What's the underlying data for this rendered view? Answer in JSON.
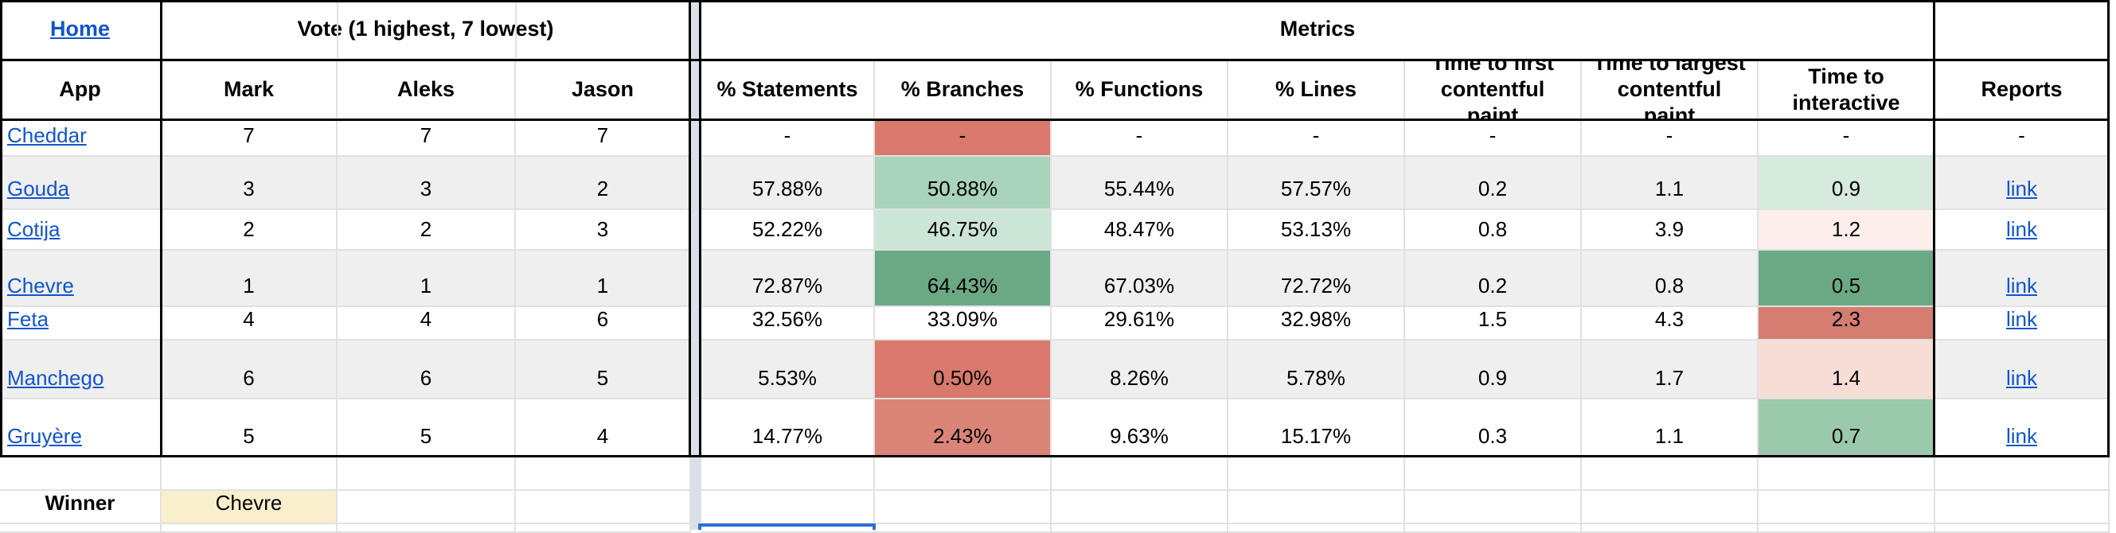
{
  "header": {
    "home": "Home",
    "vote": "Vote (1 highest, 7 lowest)",
    "metrics": "Metrics"
  },
  "columns": [
    "App",
    "Mark",
    "Aleks",
    "Jason",
    "% Statements",
    "% Branches",
    "% Functions",
    "% Lines",
    "Time to first contentful paint",
    "Time to largest contentful paint",
    "Time to interactive",
    "Reports"
  ],
  "rows": [
    {
      "app": "Cheddar",
      "votes": [
        "7",
        "7",
        "7"
      ],
      "metrics": [
        "-",
        "-",
        "-",
        "-",
        "-",
        "-",
        "-"
      ],
      "reports": "-",
      "branches_bg": "#D8796B",
      "tti_bg": null
    },
    {
      "app": "Gouda",
      "votes": [
        "3",
        "3",
        "2"
      ],
      "metrics": [
        "57.88%",
        "50.88%",
        "55.44%",
        "57.57%",
        "0.2",
        "1.1",
        "0.9"
      ],
      "reports": "link",
      "branches_bg": "#A9D3BA",
      "tti_bg": "#D7EADE"
    },
    {
      "app": "Cotija",
      "votes": [
        "2",
        "2",
        "3"
      ],
      "metrics": [
        "52.22%",
        "46.75%",
        "48.47%",
        "53.13%",
        "0.8",
        "3.9",
        "1.2"
      ],
      "reports": "link",
      "branches_bg": "#CBE5D6",
      "tti_bg": "#FBEEEB"
    },
    {
      "app": "Chevre",
      "votes": [
        "1",
        "1",
        "1"
      ],
      "metrics": [
        "72.87%",
        "64.43%",
        "67.03%",
        "72.72%",
        "0.2",
        "0.8",
        "0.5"
      ],
      "reports": "link",
      "branches_bg": "#6BA984",
      "tti_bg": "#6BA984"
    },
    {
      "app": "Feta",
      "votes": [
        "4",
        "4",
        "6"
      ],
      "metrics": [
        "32.56%",
        "33.09%",
        "29.61%",
        "32.98%",
        "1.5",
        "4.3",
        "2.3"
      ],
      "reports": "link",
      "branches_bg": null,
      "tti_bg": "#D47D70"
    },
    {
      "app": "Manchego",
      "votes": [
        "6",
        "6",
        "5"
      ],
      "metrics": [
        "5.53%",
        "0.50%",
        "8.26%",
        "5.78%",
        "0.9",
        "1.7",
        "1.4"
      ],
      "reports": "link",
      "branches_bg": "#D8796B",
      "tti_bg": "#F6DDD6"
    },
    {
      "app": "Gruyère",
      "votes": [
        "5",
        "5",
        "4"
      ],
      "metrics": [
        "14.77%",
        "2.43%",
        "9.63%",
        "15.17%",
        "0.3",
        "1.1",
        "0.7"
      ],
      "reports": "link",
      "branches_bg": "#DA8577",
      "tti_bg": "#9BC9AB"
    }
  ],
  "footer": {
    "winner_label": "Winner",
    "winner_value": "Chevre"
  },
  "colors": {
    "stripe": "#EFEFEF",
    "gridline": "#E1E1E1",
    "border": "#000000",
    "link": "#1155CC",
    "strip": "#DBE0E8",
    "selection": "#2E6FD9",
    "winner": "#FAEFCD"
  }
}
